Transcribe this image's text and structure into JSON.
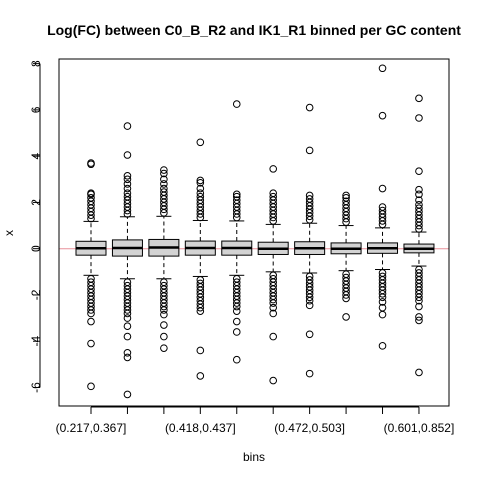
{
  "chart_data": {
    "type": "boxplot",
    "title": "Log(FC) between C0_B_R2 and IK1_R1 binned per GC content",
    "xlabel": "bins",
    "ylabel": "x",
    "ylim": [
      -6.8,
      8.2
    ],
    "yticks": [
      -6,
      -4,
      -2,
      0,
      2,
      4,
      6,
      8
    ],
    "categories": [
      "(0.217,0.367]",
      "",
      "",
      "(0.418,0.437]",
      "",
      "",
      "(0.472,0.503]",
      "",
      "",
      "(0.601,0.852]"
    ],
    "reference_line": {
      "y": 0,
      "color": "#e8909a"
    },
    "box_fill": "#d3d3d3",
    "boxes": [
      {
        "q1": -0.28,
        "median": 0.02,
        "q3": 0.32,
        "whisker_low": -1.15,
        "whisker_high": 1.18,
        "outliers_high": [
          1.3,
          1.45,
          1.6,
          1.75,
          1.9,
          2.05,
          2.2,
          2.35,
          2.4,
          3.65,
          3.7
        ],
        "outliers_low": [
          -1.3,
          -1.45,
          -1.6,
          -1.75,
          -1.9,
          -2.05,
          -2.2,
          -2.35,
          -2.5,
          -2.65,
          -2.8,
          -3.15,
          -4.1,
          -5.95
        ]
      },
      {
        "q1": -0.32,
        "median": 0.03,
        "q3": 0.38,
        "whisker_low": -1.3,
        "whisker_high": 1.38,
        "outliers_high": [
          1.5,
          1.65,
          1.8,
          1.95,
          2.1,
          2.25,
          2.4,
          2.6,
          2.8,
          3.0,
          3.15,
          4.05,
          5.3
        ],
        "outliers_low": [
          -1.45,
          -1.6,
          -1.75,
          -1.9,
          -2.05,
          -2.2,
          -2.35,
          -2.5,
          -2.65,
          -2.8,
          -3.0,
          -3.35,
          -3.8,
          -4.5,
          -4.7,
          -6.3
        ]
      },
      {
        "q1": -0.32,
        "median": 0.05,
        "q3": 0.4,
        "whisker_low": -1.3,
        "whisker_high": 1.4,
        "outliers_high": [
          1.55,
          1.7,
          1.85,
          2.0,
          2.15,
          2.3,
          2.45,
          2.6,
          2.8,
          3.0,
          3.25,
          3.4
        ],
        "outliers_low": [
          -1.45,
          -1.6,
          -1.75,
          -1.9,
          -2.05,
          -2.2,
          -2.35,
          -2.5,
          -2.65,
          -2.85,
          -3.3,
          -3.8,
          -4.3
        ]
      },
      {
        "q1": -0.28,
        "median": 0.03,
        "q3": 0.33,
        "whisker_low": -1.2,
        "whisker_high": 1.22,
        "outliers_high": [
          1.35,
          1.5,
          1.65,
          1.8,
          1.95,
          2.1,
          2.25,
          2.4,
          2.6,
          2.85,
          2.95,
          4.6
        ],
        "outliers_low": [
          -1.35,
          -1.5,
          -1.65,
          -1.8,
          -1.95,
          -2.1,
          -2.25,
          -2.4,
          -2.55,
          -2.7,
          -4.4,
          -5.5
        ]
      },
      {
        "q1": -0.28,
        "median": 0.03,
        "q3": 0.33,
        "whisker_low": -1.15,
        "whisker_high": 1.2,
        "outliers_high": [
          1.35,
          1.5,
          1.65,
          1.8,
          1.95,
          2.1,
          2.25,
          2.35,
          6.25
        ],
        "outliers_low": [
          -1.3,
          -1.45,
          -1.6,
          -1.75,
          -1.9,
          -2.05,
          -2.2,
          -2.35,
          -2.5,
          -2.7,
          -3.15,
          -3.6,
          -4.8
        ]
      },
      {
        "q1": -0.25,
        "median": 0.0,
        "q3": 0.28,
        "whisker_low": -1.0,
        "whisker_high": 1.05,
        "outliers_high": [
          1.2,
          1.35,
          1.5,
          1.65,
          1.8,
          1.95,
          2.1,
          2.25,
          2.4,
          3.45
        ],
        "outliers_low": [
          -1.15,
          -1.3,
          -1.45,
          -1.6,
          -1.75,
          -1.9,
          -2.05,
          -2.2,
          -2.35,
          -2.55,
          -2.8,
          -3.8,
          -5.7
        ]
      },
      {
        "q1": -0.25,
        "median": 0.02,
        "q3": 0.3,
        "whisker_low": -1.05,
        "whisker_high": 1.1,
        "outliers_high": [
          1.25,
          1.4,
          1.55,
          1.7,
          1.85,
          2.0,
          2.15,
          2.3,
          4.25,
          6.1
        ],
        "outliers_low": [
          -1.2,
          -1.35,
          -1.5,
          -1.65,
          -1.8,
          -1.95,
          -2.1,
          -2.25,
          -2.45,
          -3.7,
          -5.4
        ]
      },
      {
        "q1": -0.22,
        "median": 0.0,
        "q3": 0.25,
        "whisker_low": -0.95,
        "whisker_high": 1.0,
        "outliers_high": [
          1.15,
          1.3,
          1.45,
          1.6,
          1.75,
          1.9,
          2.05,
          2.2,
          2.3
        ],
        "outliers_low": [
          -1.1,
          -1.25,
          -1.4,
          -1.55,
          -1.7,
          -1.85,
          -2.0,
          -2.15,
          -2.95
        ]
      },
      {
        "q1": -0.2,
        "median": 0.02,
        "q3": 0.25,
        "whisker_low": -0.9,
        "whisker_high": 0.9,
        "outliers_high": [
          1.05,
          1.2,
          1.35,
          1.5,
          1.65,
          1.8,
          2.6,
          5.75,
          7.8
        ],
        "outliers_low": [
          -1.05,
          -1.2,
          -1.35,
          -1.5,
          -1.65,
          -1.8,
          -1.95,
          -2.1,
          -2.3,
          -2.55,
          -2.85,
          -4.2
        ]
      },
      {
        "q1": -0.18,
        "median": 0.0,
        "q3": 0.2,
        "whisker_low": -0.75,
        "whisker_high": 0.72,
        "outliers_high": [
          0.85,
          1.0,
          1.15,
          1.3,
          1.45,
          1.6,
          1.75,
          1.9,
          2.1,
          2.35,
          2.55,
          3.35,
          5.65,
          6.5
        ],
        "outliers_low": [
          -0.9,
          -1.05,
          -1.2,
          -1.35,
          -1.5,
          -1.65,
          -1.8,
          -1.95,
          -2.1,
          -2.25,
          -2.5,
          -2.95,
          -3.1,
          -5.35
        ]
      }
    ]
  }
}
